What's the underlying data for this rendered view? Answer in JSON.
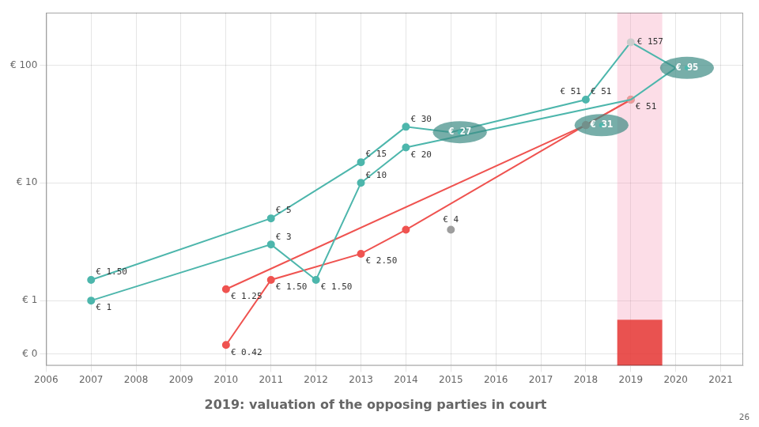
{
  "chart_data": {
    "type": "line",
    "title": "2019: valuation of the opposing parties in court",
    "page_number": "26",
    "log": "y",
    "grid": true,
    "xlim": [
      2006,
      2021.5
    ],
    "xticks": [
      2006,
      2007,
      2008,
      2009,
      2010,
      2011,
      2012,
      2013,
      2014,
      2015,
      2016,
      2017,
      2018,
      2019,
      2020,
      2021
    ],
    "ylim": [
      0.28,
      280
    ],
    "yticks": [
      {
        "value": 0.35,
        "label": "€ 0"
      },
      {
        "value": 1,
        "label": "€ 1"
      },
      {
        "value": 10,
        "label": "€ 10"
      },
      {
        "value": 100,
        "label": "€ 100"
      }
    ],
    "highlight": {
      "x": [
        2018.7,
        2019.7
      ],
      "colors": [
        "#f48fb1",
        "#e53935"
      ]
    },
    "series": [
      {
        "color": "#4db6ac",
        "x": [
          2007,
          2011,
          2013,
          2014,
          2015,
          2018,
          2019,
          2020
        ],
        "values": [
          1.5,
          5.0,
          15.0,
          30.0,
          27.0,
          51.0,
          157.0,
          95.0
        ],
        "colors": [
          "#4db6ac",
          "#4db6ac",
          "#4db6ac",
          "#4db6ac",
          null,
          "#4db6ac",
          "#cccccc",
          null
        ]
      },
      {
        "color": "#4db6ac",
        "x": [
          2007,
          2011,
          2012,
          2013,
          2014,
          2019,
          2020
        ],
        "values": [
          1.0,
          3.0,
          1.5,
          10.0,
          20.0,
          51.0,
          95.0
        ],
        "colors": [
          "#4db6ac",
          "#4db6ac",
          "#4db6ac",
          "#4db6ac",
          "#4db6ac",
          null,
          null
        ]
      },
      {
        "color": "#ef5350",
        "x": [
          2010,
          2011,
          2013,
          2014,
          2018,
          2019
        ],
        "values": [
          0.42,
          1.5,
          2.5,
          4.0,
          31.0,
          51.0
        ],
        "colors": [
          "#ef5350",
          "#ef5350",
          "#ef5350",
          "#ef5350",
          "#ef9a9a",
          "#ef9a9a"
        ]
      },
      {
        "color": "#ef5350",
        "x": [
          2010,
          2018,
          2019
        ],
        "values": [
          1.25,
          31.0,
          51.0
        ],
        "colors": [
          "#ef5350",
          "#ef9a9a",
          null
        ]
      },
      {
        "type": "scatter",
        "color": "#9e9e9e",
        "x": [
          2015,
          2019
        ],
        "values": [
          4.0,
          51.0
        ]
      },
      {
        "type": "scatter",
        "marker": "ellipse",
        "color": "#3d8b84",
        "x": [
          2015.2,
          2018.35,
          2020.25
        ],
        "values": [
          27.0,
          31.0,
          95.0
        ],
        "colors": [
          "#4db6ac",
          "#4db6ac",
          "#4db6ac"
        ],
        "data_labels": true,
        "value_labels": [
          "€ 27",
          "€ 31",
          "€ 95"
        ]
      }
    ],
    "annotations": [
      {
        "x": 2007,
        "y": 1.5,
        "text": "€ 1.50"
      },
      {
        "x": 2011,
        "y": 5,
        "text": "€ 5"
      },
      {
        "x": 2013,
        "y": 15,
        "text": "€ 15"
      },
      {
        "x": 2014,
        "y": 30,
        "text": "€ 30"
      },
      {
        "x": 2018,
        "y": 51,
        "text": "€ 51"
      },
      {
        "x": 2019,
        "y": 157,
        "text": "€ 157"
      },
      {
        "x": 2007,
        "y": 1,
        "text": "€ 1"
      },
      {
        "x": 2011,
        "y": 3,
        "text": "€ 3"
      },
      {
        "x": 2012,
        "y": 1.5,
        "text": "€ 1.50"
      },
      {
        "x": 2013,
        "y": 10,
        "text": "€ 10"
      },
      {
        "x": 2014,
        "y": 20,
        "text": "€ 20"
      },
      {
        "x": 2019,
        "y": 51,
        "text": "€ 51"
      },
      {
        "x": 2010,
        "y": 0.42,
        "text": "€ 0.42"
      },
      {
        "x": 2011,
        "y": 1.5,
        "text": "€ 1.50"
      },
      {
        "x": 2013,
        "y": 2.5,
        "text": "€ 2.50"
      },
      {
        "x": 2015,
        "y": 4,
        "text": "€ 4"
      },
      {
        "x": 2010,
        "y": 1.25,
        "text": "€ 1.25"
      },
      {
        "x": 2018,
        "y": 51,
        "text": "€ 51"
      }
    ]
  }
}
